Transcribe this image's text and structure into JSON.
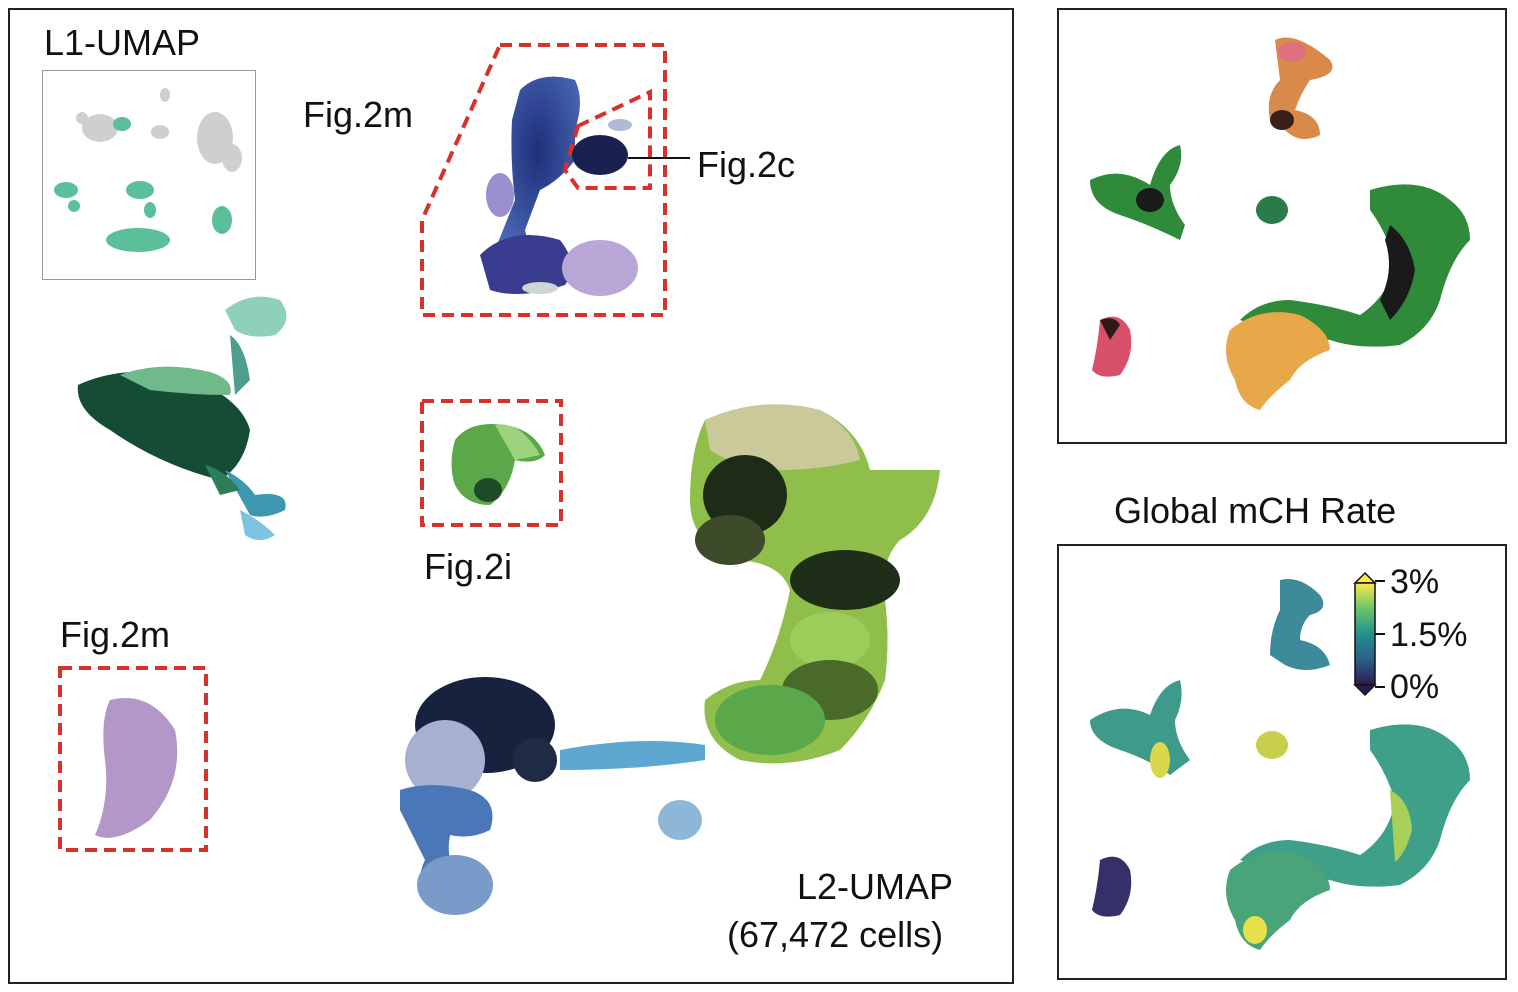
{
  "main_panel": {
    "inset_title": "L1-UMAP",
    "umap_title": "L2-UMAP",
    "cell_count": "(67,472 cells)",
    "callouts": {
      "fig2m_top": "Fig.2m",
      "fig2c": "Fig.2c",
      "fig2i": "Fig.2i",
      "fig2m_bottom": "Fig.2m"
    }
  },
  "right_bottom_panel": {
    "title": "Global mCH Rate",
    "colorbar_ticks": [
      "3%",
      "1.5%",
      "0%"
    ]
  },
  "colors": {
    "dashed_box": "#d8302a",
    "frame": "#222222",
    "l1_teal": "#5bbf9a",
    "l1_grey": "#cfcfcf"
  }
}
